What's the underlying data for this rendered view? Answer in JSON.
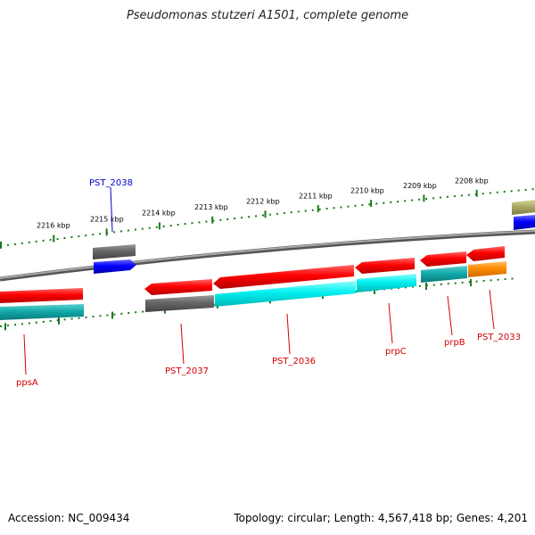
{
  "title": "Pseudomonas stutzeri A1501, complete genome",
  "footer": {
    "accession": "Accession: NC_009434",
    "summary": "Topology: circular; Length: 4,567,418 bp; Genes: 4,201"
  },
  "scale_labels": [
    "2216 kbp",
    "2215 kbp",
    "2214 kbp",
    "2213 kbp",
    "2212 kbp",
    "2211 kbp",
    "2210 kbp",
    "2209 kbp",
    "2208 kbp"
  ],
  "gene_labels": [
    "PST_2038",
    "ppsA",
    "PST_2037",
    "PST_2036",
    "prpC",
    "prpB",
    "PST_2033"
  ],
  "colors": {
    "gene_red": "#ee0000",
    "gene_cyan": "#00dddd",
    "gene_teal": "#11aaaa",
    "gene_gray": "#666666",
    "gene_blue": "#0000ee",
    "gene_orange": "#ff8800",
    "gene_olive": "#aaaa66",
    "tick_green": "#1a7a1a",
    "backbone": "#888888",
    "label_red": "#d40000",
    "label_blue": "#0000cc"
  }
}
